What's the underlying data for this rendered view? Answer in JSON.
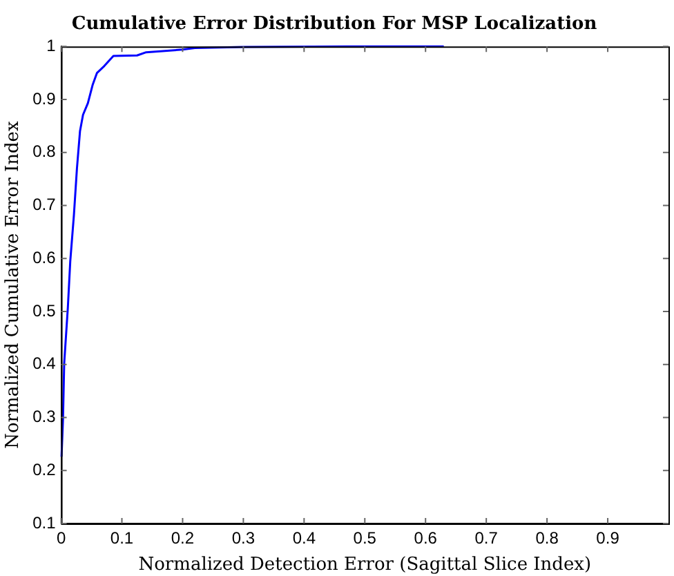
{
  "chart_data": {
    "type": "line",
    "title": "Cumulative Error Distribution For MSP Localization",
    "xlabel": "Normalized Detection Error (Sagittal Slice Index)",
    "ylabel": "Normalized Cumulative Error Index",
    "x": [
      0.0006,
      0.003,
      0.005,
      0.011,
      0.015,
      0.021,
      0.026,
      0.031,
      0.036,
      0.044,
      0.052,
      0.059,
      0.071,
      0.086,
      0.125,
      0.14,
      0.2,
      0.22,
      0.3,
      0.47,
      0.63
    ],
    "series": [
      {
        "color": "#0000ff",
        "values": [
          0.226,
          0.296,
          0.402,
          0.507,
          0.595,
          0.682,
          0.77,
          0.84,
          0.871,
          0.893,
          0.928,
          0.95,
          0.963,
          0.982,
          0.983,
          0.989,
          0.994,
          0.997,
          0.999,
          1,
          1
        ]
      }
    ],
    "xlim": [
      0,
      1
    ],
    "xticks": [
      0,
      0.1,
      0.2,
      0.3,
      0.4,
      0.5,
      0.6,
      0.7,
      0.8,
      0.9
    ],
    "ylim": [
      0.1,
      1
    ],
    "yticks": [
      0.1,
      0.2,
      0.3,
      0.4,
      0.5,
      0.6,
      0.7,
      0.8,
      0.9,
      1
    ],
    "grid": false,
    "legend": false,
    "marker": "none",
    "line_style": "solid"
  }
}
